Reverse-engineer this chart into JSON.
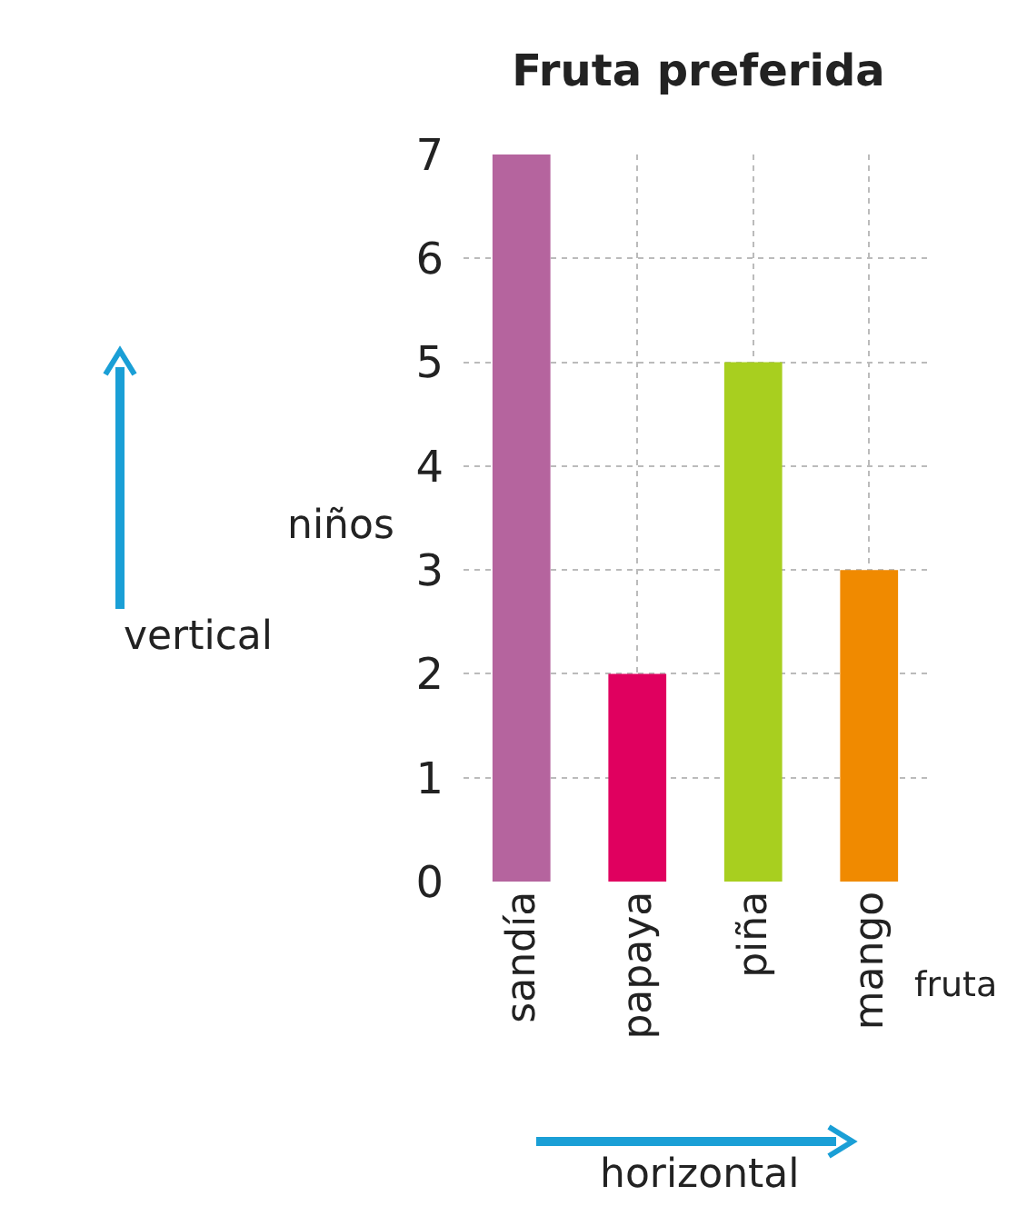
{
  "chart_data": {
    "type": "bar",
    "title": "Fruta preferida",
    "xlabel": "fruta",
    "ylabel": "niños",
    "categories": [
      "sandía",
      "papaya",
      "piña",
      "mango"
    ],
    "values": [
      7,
      2,
      5,
      3
    ],
    "colors": [
      "#b5649e",
      "#e0005f",
      "#a8cf1f",
      "#f08a00"
    ],
    "ylim": [
      0,
      7
    ],
    "yticks": [
      0,
      1,
      2,
      3,
      4,
      5,
      6,
      7
    ],
    "grid": true,
    "annotations": [
      "vertical",
      "horizontal"
    ]
  }
}
